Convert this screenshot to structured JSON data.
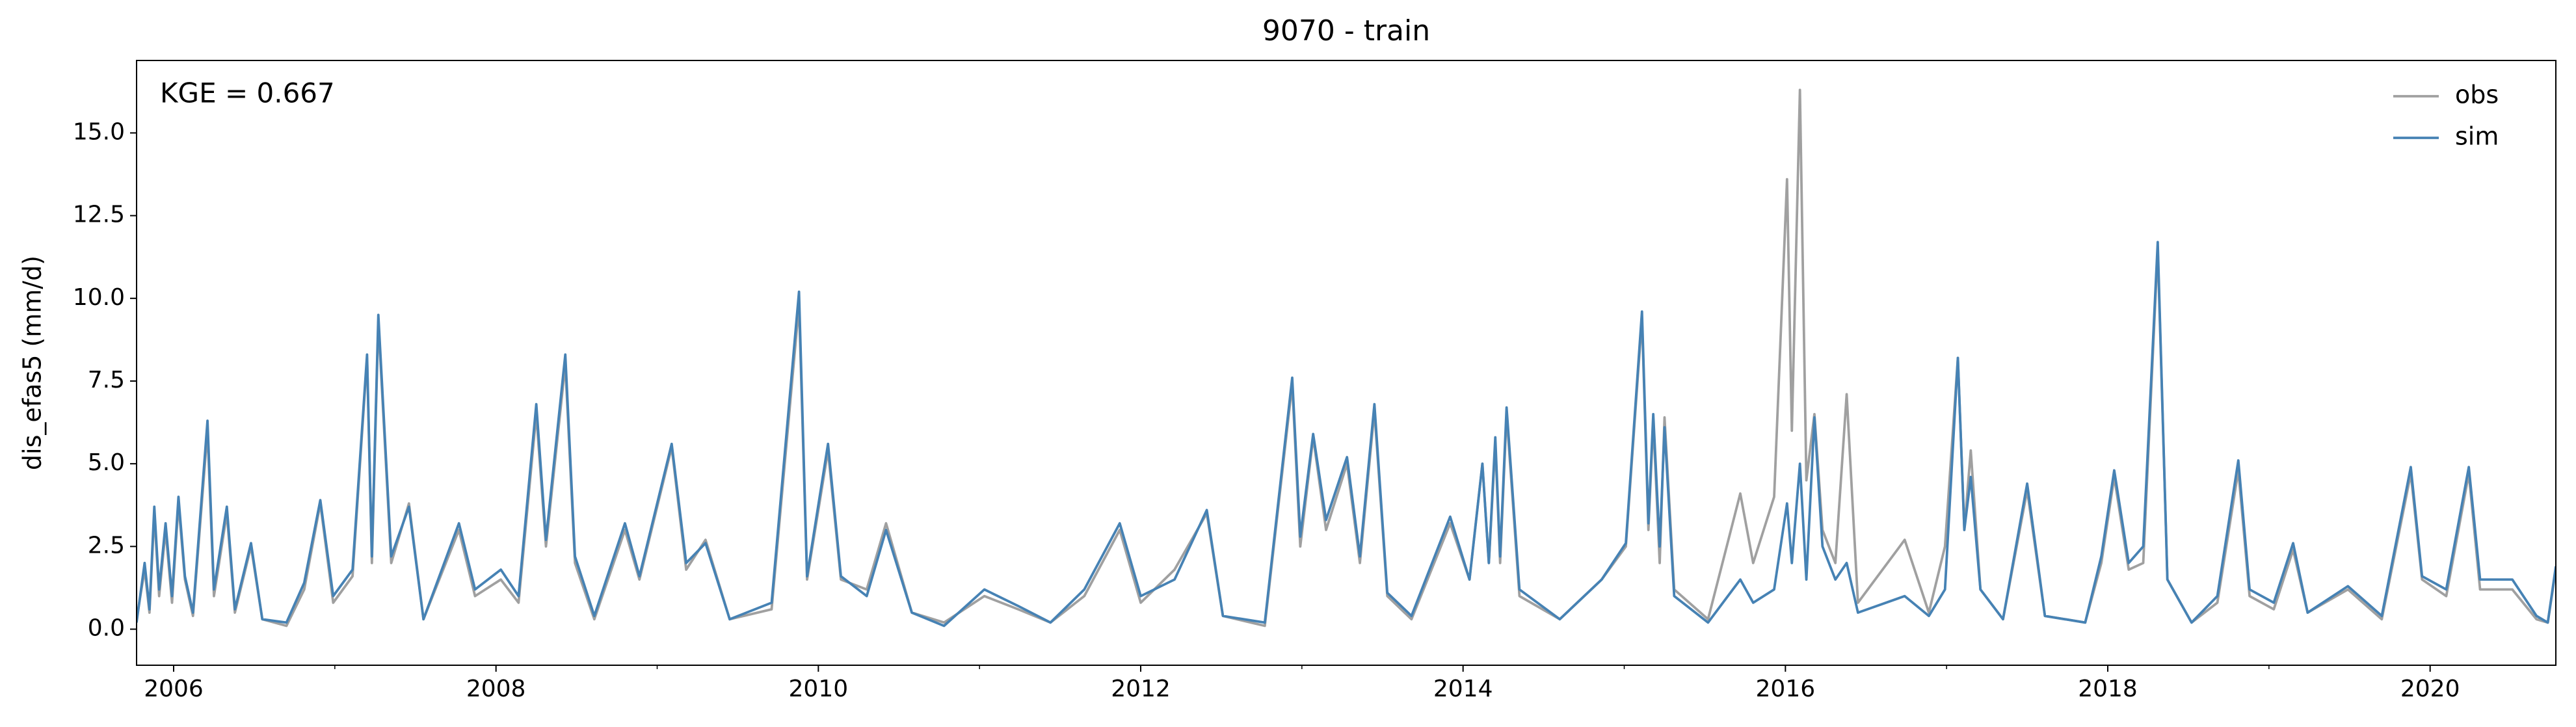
{
  "chart_data": {
    "type": "line",
    "title": "9070 - train",
    "ylabel": "dis_efas5 (mm/d)",
    "annotation": "KGE = 0.667",
    "legend": "upper right",
    "x": [
      2005.77,
      2005.82,
      2005.85,
      2005.88,
      2005.91,
      2005.95,
      2005.99,
      2006.03,
      2006.07,
      2006.12,
      2006.21,
      2006.25,
      2006.33,
      2006.38,
      2006.48,
      2006.55,
      2006.7,
      2006.81,
      2006.91,
      2006.99,
      2007.11,
      2007.2,
      2007.23,
      2007.27,
      2007.35,
      2007.46,
      2007.55,
      2007.77,
      2007.87,
      2008.03,
      2008.14,
      2008.25,
      2008.31,
      2008.43,
      2008.49,
      2008.61,
      2008.8,
      2008.89,
      2009.09,
      2009.18,
      2009.3,
      2009.45,
      2009.71,
      2009.88,
      2009.93,
      2010.06,
      2010.14,
      2010.3,
      2010.42,
      2010.58,
      2010.78,
      2011.03,
      2011.24,
      2011.44,
      2011.65,
      2011.87,
      2012.0,
      2012.21,
      2012.41,
      2012.51,
      2012.77,
      2012.94,
      2012.99,
      2013.07,
      2013.15,
      2013.28,
      2013.36,
      2013.45,
      2013.53,
      2013.68,
      2013.92,
      2014.04,
      2014.12,
      2014.16,
      2014.2,
      2014.23,
      2014.27,
      2014.35,
      2014.6,
      2014.86,
      2015.01,
      2015.11,
      2015.15,
      2015.18,
      2015.22,
      2015.25,
      2015.31,
      2015.52,
      2015.72,
      2015.8,
      2015.93,
      2016.01,
      2016.04,
      2016.09,
      2016.13,
      2016.18,
      2016.23,
      2016.31,
      2016.38,
      2016.45,
      2016.74,
      2016.89,
      2016.99,
      2017.07,
      2017.11,
      2017.15,
      2017.21,
      2017.35,
      2017.5,
      2017.61,
      2017.86,
      2017.96,
      2018.04,
      2018.13,
      2018.22,
      2018.31,
      2018.37,
      2018.52,
      2018.68,
      2018.81,
      2018.88,
      2019.03,
      2019.15,
      2019.24,
      2019.49,
      2019.7,
      2019.88,
      2019.95,
      2020.1,
      2020.24,
      2020.31,
      2020.51,
      2020.66,
      2020.73,
      2020.78
    ],
    "series": [
      {
        "name": "obs",
        "color": "#a0a0a0",
        "values": [
          0.3,
          1.8,
          0.5,
          3.5,
          1.0,
          3.0,
          0.8,
          3.8,
          1.5,
          0.4,
          6.0,
          1.0,
          3.5,
          0.5,
          2.5,
          0.3,
          0.1,
          1.2,
          3.8,
          0.8,
          1.6,
          8.2,
          2.0,
          9.3,
          2.0,
          3.8,
          0.3,
          3.0,
          1.0,
          1.5,
          0.8,
          6.5,
          2.5,
          8.0,
          2.0,
          0.3,
          3.0,
          1.5,
          5.5,
          1.8,
          2.7,
          0.3,
          0.6,
          9.8,
          1.5,
          5.4,
          1.5,
          1.2,
          3.2,
          0.5,
          0.2,
          1.0,
          0.6,
          0.2,
          1.0,
          3.0,
          0.8,
          1.8,
          3.5,
          0.4,
          0.1,
          7.4,
          2.5,
          5.8,
          3.0,
          5.0,
          2.0,
          6.6,
          1.0,
          0.3,
          3.2,
          1.5,
          5.0,
          2.0,
          5.6,
          2.0,
          6.5,
          1.0,
          0.3,
          1.5,
          2.5,
          9.4,
          3.0,
          6.3,
          2.0,
          6.4,
          1.2,
          0.3,
          4.1,
          2.0,
          4.0,
          13.6,
          6.0,
          16.3,
          4.5,
          6.5,
          3.0,
          2.0,
          7.1,
          0.8,
          2.7,
          0.5,
          2.5,
          8.2,
          3.0,
          5.4,
          1.2,
          0.3,
          4.2,
          0.4,
          0.2,
          2.0,
          4.6,
          1.8,
          2.0,
          11.5,
          1.5,
          0.2,
          0.8,
          4.8,
          1.0,
          0.6,
          2.4,
          0.5,
          1.2,
          0.3,
          4.7,
          1.5,
          1.0,
          4.7,
          1.2,
          1.2,
          0.3,
          0.2,
          1.8
        ]
      },
      {
        "name": "sim",
        "color": "#4682b4",
        "values": [
          0.2,
          2.0,
          0.6,
          3.7,
          1.2,
          3.2,
          1.0,
          4.0,
          1.6,
          0.5,
          6.3,
          1.2,
          3.7,
          0.6,
          2.6,
          0.3,
          0.2,
          1.4,
          3.9,
          1.0,
          1.8,
          8.3,
          2.2,
          9.5,
          2.2,
          3.7,
          0.3,
          3.2,
          1.2,
          1.8,
          1.0,
          6.8,
          2.7,
          8.3,
          2.2,
          0.4,
          3.2,
          1.6,
          5.6,
          2.0,
          2.6,
          0.3,
          0.8,
          10.2,
          1.6,
          5.6,
          1.6,
          1.0,
          3.0,
          0.5,
          0.1,
          1.2,
          0.7,
          0.2,
          1.2,
          3.2,
          1.0,
          1.5,
          3.6,
          0.4,
          0.2,
          7.6,
          2.8,
          5.9,
          3.3,
          5.2,
          2.2,
          6.8,
          1.1,
          0.4,
          3.4,
          1.5,
          5.0,
          2.0,
          5.8,
          2.2,
          6.7,
          1.2,
          0.3,
          1.5,
          2.6,
          9.6,
          3.2,
          6.5,
          2.5,
          6.1,
          1.0,
          0.2,
          1.5,
          0.8,
          1.2,
          3.8,
          2.0,
          5.0,
          1.5,
          6.4,
          2.5,
          1.5,
          2.0,
          0.5,
          1.0,
          0.4,
          1.2,
          8.2,
          3.0,
          4.6,
          1.2,
          0.3,
          4.4,
          0.4,
          0.2,
          2.2,
          4.8,
          2.0,
          2.5,
          11.7,
          1.5,
          0.2,
          1.0,
          5.1,
          1.2,
          0.8,
          2.6,
          0.5,
          1.3,
          0.4,
          4.9,
          1.6,
          1.2,
          4.9,
          1.5,
          1.5,
          0.4,
          0.2,
          1.9
        ]
      }
    ],
    "xlim": [
      2005.77,
      2020.78
    ],
    "xticks": [
      2006,
      2008,
      2010,
      2012,
      2014,
      2016,
      2018,
      2020
    ],
    "xminor_ticks": [
      2007,
      2009,
      2011,
      2013,
      2015,
      2017,
      2019
    ],
    "ylim": [
      -1.09,
      17.19
    ],
    "yticks": [
      {
        "value": 0,
        "label": "0.0"
      },
      {
        "value": 2.5,
        "label": "2.5"
      },
      {
        "value": 5,
        "label": "5.0"
      },
      {
        "value": 7.5,
        "label": "7.5"
      },
      {
        "value": 10,
        "label": "10.0"
      },
      {
        "value": 12.5,
        "label": "12.5"
      },
      {
        "value": 15,
        "label": "15.0"
      }
    ],
    "grid": false
  }
}
